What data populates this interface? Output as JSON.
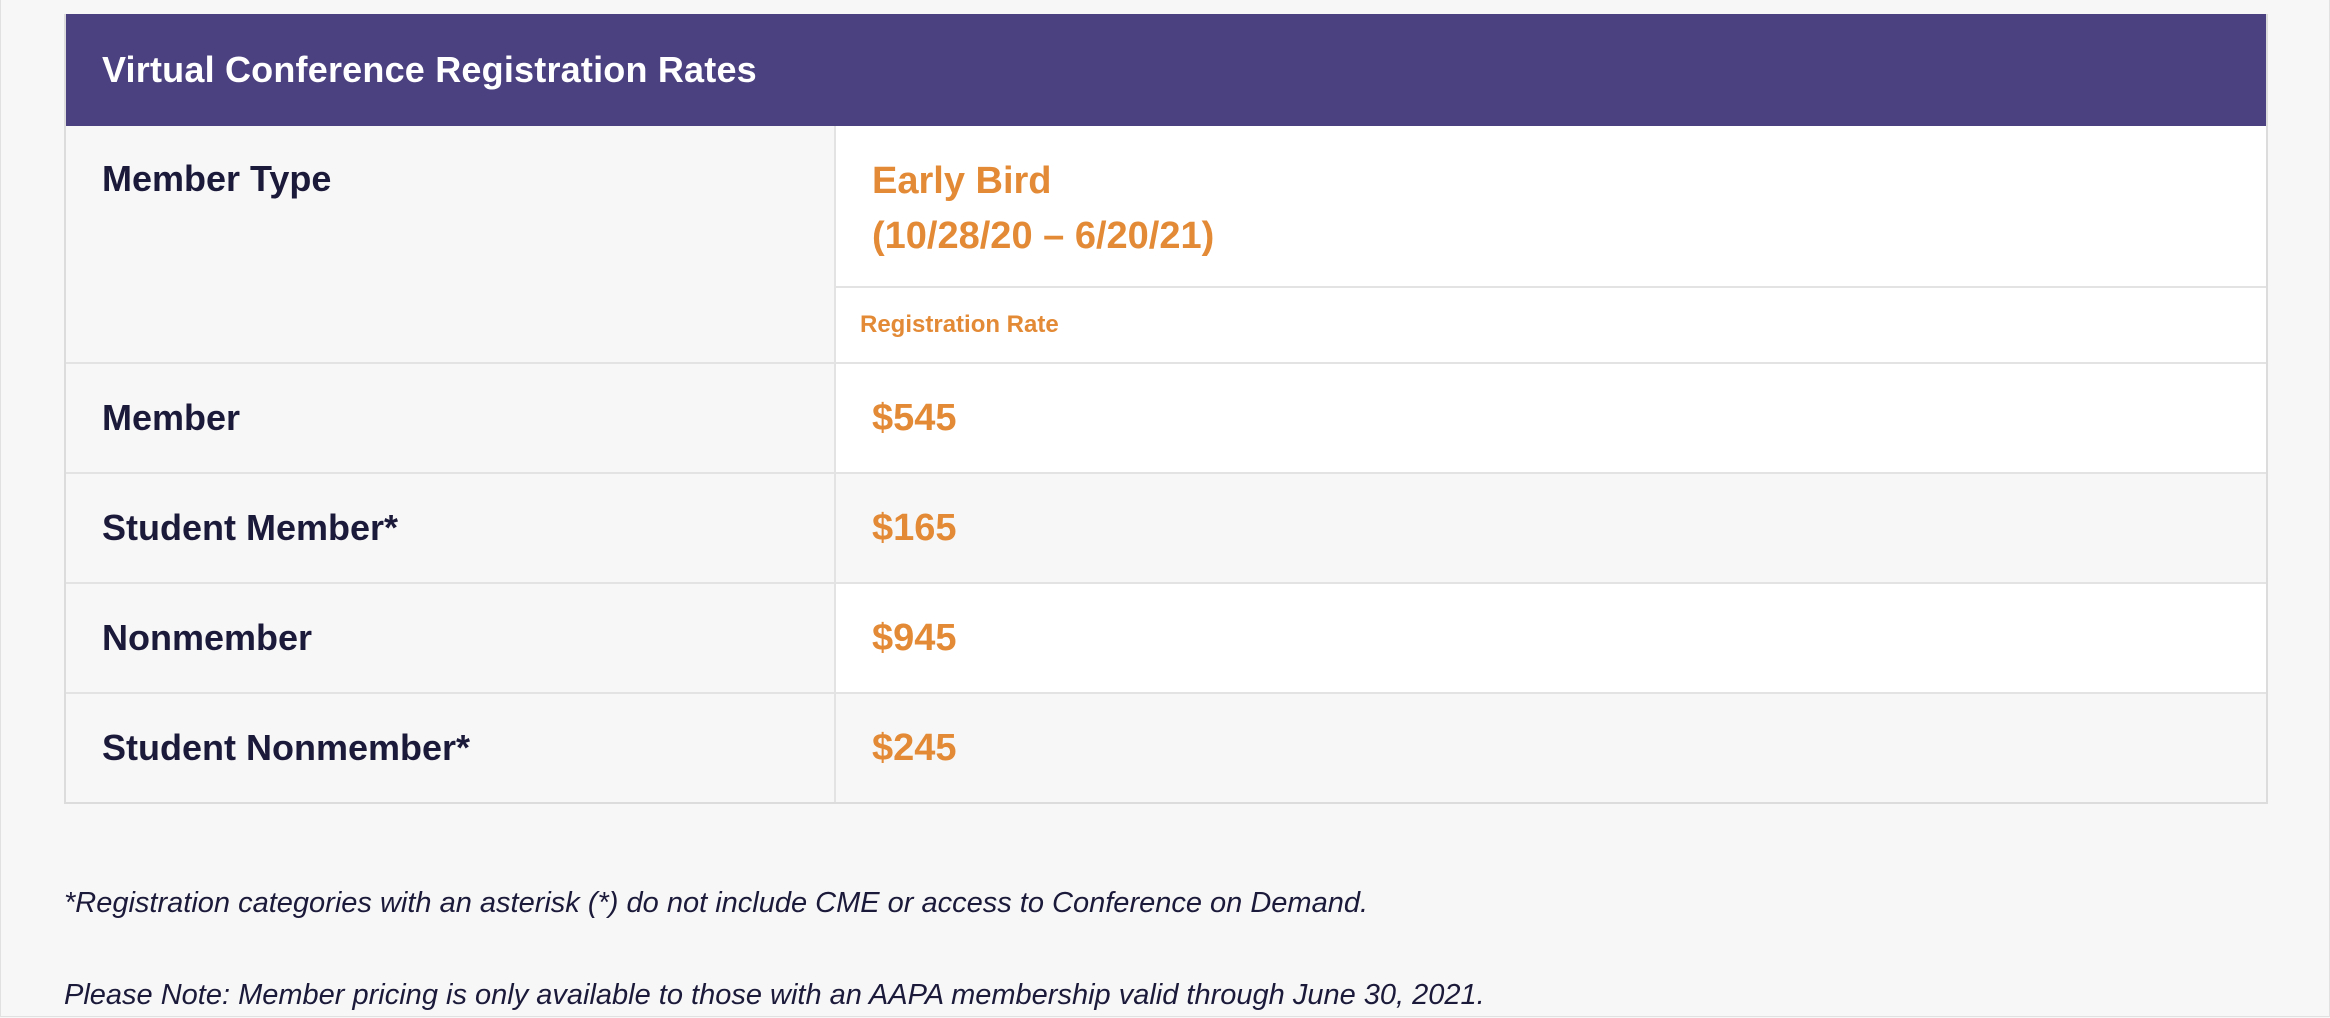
{
  "table": {
    "title": "Virtual Conference Registration Rates",
    "column_header": "Member Type",
    "period_label": "Early Bird",
    "period_dates": "(10/28/20 – 6/20/21)",
    "rate_label": "Registration Rate",
    "rows": [
      {
        "type": "Member",
        "rate": "$545"
      },
      {
        "type": "Student Member*",
        "rate": "$165"
      },
      {
        "type": "Nonmember",
        "rate": "$945"
      },
      {
        "type": "Student Nonmember*",
        "rate": "$245"
      }
    ]
  },
  "notes": {
    "asterisk": "*Registration categories with an asterisk (*) do not include CME or access to Conference on Demand.",
    "pricing": "Please Note: Member pricing is only available to those with an AAPA membership valid through June 30, 2021."
  },
  "colors": {
    "header_bg": "#4b4080",
    "accent": "#e38a36",
    "text_dark": "#1c1a3a"
  }
}
